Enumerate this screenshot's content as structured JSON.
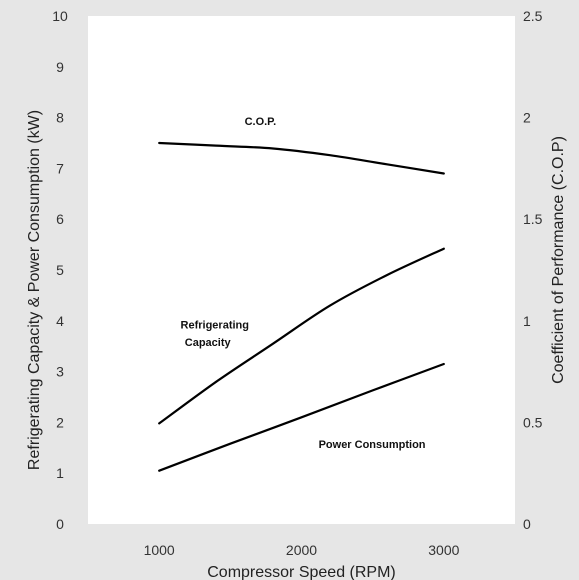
{
  "chart_data": {
    "type": "line",
    "xlabel": "Compressor Speed (RPM)",
    "ylabel": "Refrigerating Capacity & Power Consumption (kW)",
    "ylabel_right": "Coefficient of Performance (C.O.P)",
    "xlim": [
      500,
      3500
    ],
    "ylim": [
      0,
      10
    ],
    "ylim_right": [
      0,
      2.5
    ],
    "x_ticks": [
      "1000",
      "2000",
      "3000"
    ],
    "y_ticks": [
      "0",
      "1",
      "2",
      "3",
      "4",
      "5",
      "6",
      "7",
      "8",
      "9",
      "10"
    ],
    "y_ticks_right": [
      "0",
      "0.5",
      "1",
      "1.5",
      "2",
      "2.5"
    ],
    "grid": false,
    "colors": {
      "background": "#e6e6e6",
      "plot": "#ffffff",
      "line": "#000000"
    },
    "series": [
      {
        "label": "C.O.P.",
        "axis": "right",
        "x": [
          1000,
          1400,
          1800,
          2200,
          2600,
          3000
        ],
        "y": [
          1.875,
          1.862,
          1.848,
          1.815,
          1.77,
          1.725
        ]
      },
      {
        "label": "Refrigerating Capacity",
        "axis": "left",
        "x": [
          1000,
          1400,
          1800,
          2200,
          2600,
          3000
        ],
        "y": [
          1.98,
          2.8,
          3.55,
          4.3,
          4.9,
          5.42
        ]
      },
      {
        "label": "Power Consumption",
        "axis": "left",
        "x": [
          1000,
          1500,
          2000,
          2500,
          3000
        ],
        "y": [
          1.05,
          1.58,
          2.1,
          2.63,
          3.15
        ]
      }
    ],
    "annotations": {
      "cop": "C.O.P.",
      "capacity_line1": "Refrigerating",
      "capacity_line2": "Capacity",
      "power": "Power Consumption"
    }
  }
}
